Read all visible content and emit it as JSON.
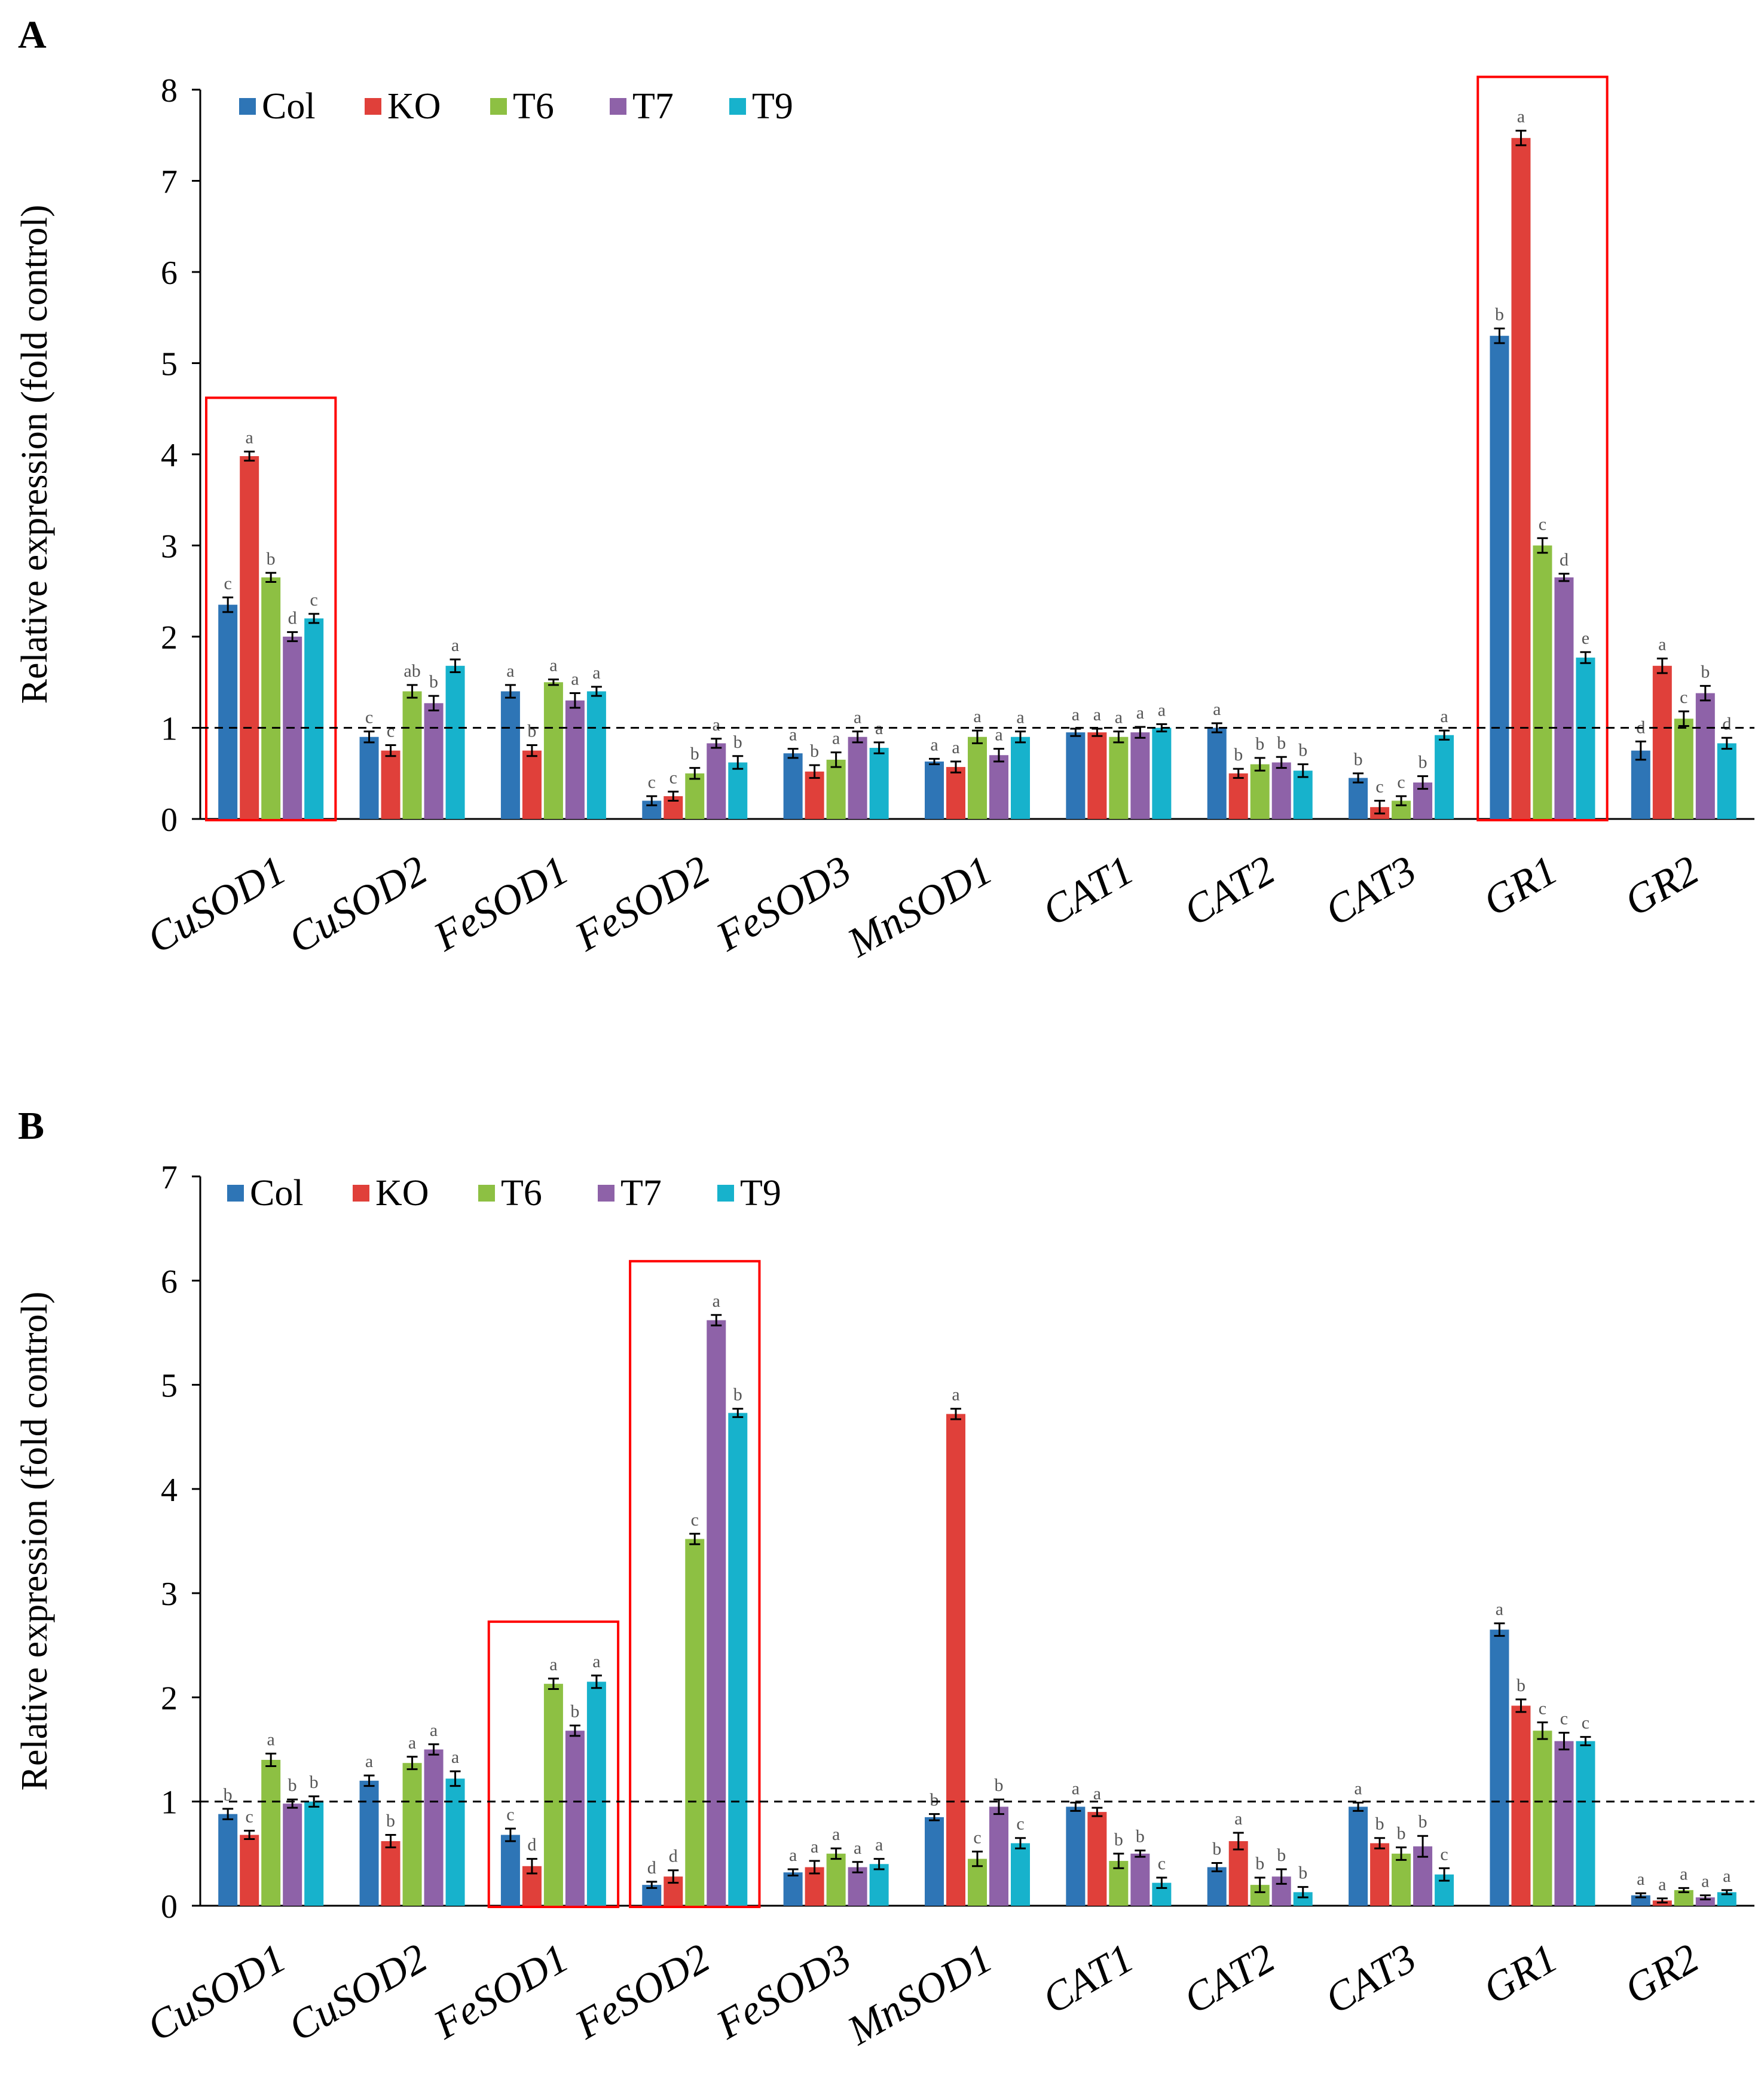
{
  "legend": [
    "Col",
    "KO",
    "T6",
    "T7",
    "T9"
  ],
  "colors": {
    "Col": "#2E75B6",
    "KO": "#E0403A",
    "T6": "#8DC043",
    "T7": "#8E62A8",
    "T9": "#17B2CC",
    "highlight": "#FF0000"
  },
  "chart_data": [
    {
      "panel": "A",
      "type": "bar",
      "ylabel": "Relative  expression  (fold  control)",
      "ylim": [
        0,
        8
      ],
      "yticks": [
        "0",
        "1",
        "2",
        "3",
        "4",
        "5",
        "6",
        "7",
        "8"
      ],
      "reference_line": 1,
      "categories": [
        "CuSOD1",
        "CuSOD2",
        "FeSOD1",
        "FeSOD2",
        "FeSOD3",
        "MnSOD1",
        "CAT1",
        "CAT2",
        "CAT3",
        "GR1",
        "GR2"
      ],
      "highlighted_categories": [
        "CuSOD1",
        "GR1"
      ],
      "series": [
        {
          "name": "Col",
          "values": [
            2.35,
            0.9,
            1.4,
            0.2,
            0.72,
            0.63,
            0.95,
            1.0,
            0.45,
            5.3,
            0.75
          ],
          "errors": [
            0.08,
            0.06,
            0.07,
            0.05,
            0.05,
            0.03,
            0.04,
            0.05,
            0.05,
            0.08,
            0.1
          ],
          "labels": [
            "c",
            "c",
            "a",
            "c",
            "a",
            "a",
            "a",
            "a",
            "b",
            "b",
            "d"
          ]
        },
        {
          "name": "KO",
          "values": [
            3.98,
            0.75,
            0.75,
            0.25,
            0.52,
            0.57,
            0.95,
            0.5,
            0.13,
            7.47,
            1.68
          ],
          "errors": [
            0.05,
            0.06,
            0.06,
            0.05,
            0.07,
            0.06,
            0.04,
            0.05,
            0.07,
            0.08,
            0.08
          ],
          "labels": [
            "a",
            "c",
            "b",
            "c",
            "b",
            "a",
            "a",
            "b",
            "c",
            "a",
            "a"
          ]
        },
        {
          "name": "T6",
          "values": [
            2.65,
            1.4,
            1.5,
            0.5,
            0.65,
            0.9,
            0.9,
            0.6,
            0.2,
            3.0,
            1.1
          ],
          "errors": [
            0.05,
            0.07,
            0.03,
            0.06,
            0.08,
            0.07,
            0.06,
            0.07,
            0.05,
            0.08,
            0.08
          ],
          "labels": [
            "b",
            "ab",
            "a",
            "b",
            "a",
            "a",
            "a",
            "b",
            "c",
            "c",
            "c"
          ]
        },
        {
          "name": "T7",
          "values": [
            2.0,
            1.27,
            1.3,
            0.83,
            0.9,
            0.7,
            0.95,
            0.62,
            0.4,
            2.65,
            1.38
          ],
          "errors": [
            0.05,
            0.08,
            0.08,
            0.05,
            0.06,
            0.07,
            0.06,
            0.06,
            0.07,
            0.04,
            0.08
          ],
          "labels": [
            "d",
            "b",
            "a",
            "a",
            "a",
            "a",
            "a",
            "b",
            "b",
            "d",
            "b"
          ]
        },
        {
          "name": "T9",
          "values": [
            2.2,
            1.68,
            1.4,
            0.62,
            0.78,
            0.9,
            1.0,
            0.53,
            0.92,
            1.77,
            0.83
          ],
          "errors": [
            0.05,
            0.07,
            0.05,
            0.07,
            0.06,
            0.06,
            0.04,
            0.07,
            0.05,
            0.06,
            0.06
          ],
          "labels": [
            "c",
            "a",
            "a",
            "b",
            "a",
            "a",
            "a",
            "b",
            "a",
            "e",
            "d"
          ]
        }
      ]
    },
    {
      "panel": "B",
      "type": "bar",
      "ylabel": "Relative  expression  (fold  control)",
      "ylim": [
        0,
        7
      ],
      "yticks": [
        "0",
        "1",
        "2",
        "3",
        "4",
        "5",
        "6",
        "7"
      ],
      "reference_line": 1,
      "categories": [
        "CuSOD1",
        "CuSOD2",
        "FeSOD1",
        "FeSOD2",
        "FeSOD3",
        "MnSOD1",
        "CAT1",
        "CAT2",
        "CAT3",
        "GR1",
        "GR2"
      ],
      "highlighted_categories": [
        "FeSOD1",
        "FeSOD2"
      ],
      "series": [
        {
          "name": "Col",
          "values": [
            0.88,
            1.2,
            0.68,
            0.2,
            0.32,
            0.85,
            0.95,
            0.37,
            0.95,
            2.65,
            0.1
          ],
          "errors": [
            0.05,
            0.05,
            0.06,
            0.03,
            0.03,
            0.03,
            0.04,
            0.04,
            0.04,
            0.06,
            0.02
          ],
          "labels": [
            "b",
            "a",
            "c",
            "d",
            "a",
            "b",
            "a",
            "b",
            "a",
            "a",
            "a"
          ]
        },
        {
          "name": "KO",
          "values": [
            0.68,
            0.62,
            0.38,
            0.28,
            0.37,
            4.72,
            0.9,
            0.62,
            0.6,
            1.92,
            0.05
          ],
          "errors": [
            0.04,
            0.06,
            0.07,
            0.06,
            0.06,
            0.05,
            0.04,
            0.08,
            0.05,
            0.06,
            0.02
          ],
          "labels": [
            "c",
            "b",
            "d",
            "d",
            "a",
            "a",
            "a",
            "a",
            "b",
            "b",
            "a"
          ]
        },
        {
          "name": "T6",
          "values": [
            1.4,
            1.37,
            2.13,
            3.52,
            0.5,
            0.45,
            0.43,
            0.2,
            0.5,
            1.68,
            0.15
          ],
          "errors": [
            0.06,
            0.06,
            0.05,
            0.05,
            0.05,
            0.07,
            0.07,
            0.07,
            0.06,
            0.08,
            0.02
          ],
          "labels": [
            "a",
            "a",
            "a",
            "c",
            "a",
            "c",
            "b",
            "b",
            "b",
            "c",
            "a"
          ]
        },
        {
          "name": "T7",
          "values": [
            0.98,
            1.5,
            1.68,
            5.62,
            0.37,
            0.95,
            0.5,
            0.28,
            0.57,
            1.58,
            0.08
          ],
          "errors": [
            0.04,
            0.05,
            0.05,
            0.05,
            0.05,
            0.07,
            0.03,
            0.07,
            0.1,
            0.08,
            0.02
          ],
          "labels": [
            "b",
            "a",
            "b",
            "a",
            "a",
            "b",
            "b",
            "b",
            "b",
            "c",
            "a"
          ]
        },
        {
          "name": "T9",
          "values": [
            1.0,
            1.22,
            2.15,
            4.73,
            0.4,
            0.6,
            0.22,
            0.13,
            0.3,
            1.58,
            0.13
          ],
          "errors": [
            0.05,
            0.07,
            0.06,
            0.04,
            0.05,
            0.05,
            0.05,
            0.05,
            0.06,
            0.04,
            0.02
          ],
          "labels": [
            "b",
            "a",
            "a",
            "b",
            "a",
            "c",
            "c",
            "b",
            "c",
            "c",
            "a"
          ]
        }
      ]
    }
  ]
}
